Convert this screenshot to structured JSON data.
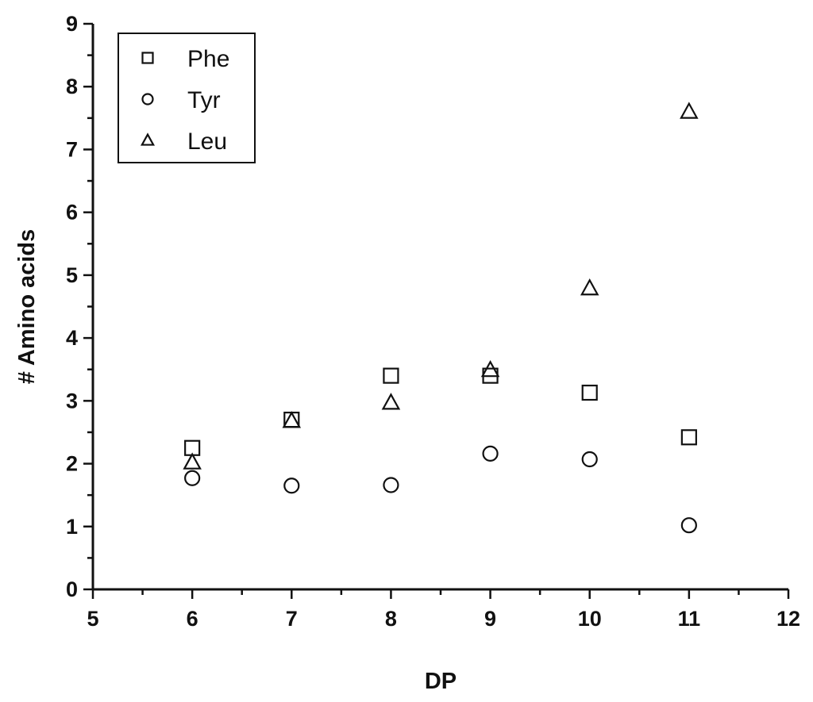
{
  "chart_data": {
    "type": "scatter",
    "xlabel": "DP",
    "ylabel": "# Amino acids",
    "xlim": [
      5,
      12
    ],
    "ylim": [
      0,
      9
    ],
    "x_ticks": [
      "5",
      "6",
      "7",
      "8",
      "9",
      "10",
      "11",
      "12"
    ],
    "y_ticks": [
      "0",
      "1",
      "2",
      "3",
      "4",
      "5",
      "6",
      "7",
      "8",
      "9"
    ],
    "legend_position": "top-left",
    "grid": false,
    "series": [
      {
        "name": "Phe",
        "marker": "square",
        "x": [
          6,
          7,
          8,
          9,
          10,
          11
        ],
        "y": [
          2.25,
          2.7,
          3.4,
          3.4,
          3.13,
          2.42
        ]
      },
      {
        "name": "Tyr",
        "marker": "circle",
        "x": [
          6,
          7,
          8,
          9,
          10,
          11
        ],
        "y": [
          1.77,
          1.65,
          1.66,
          2.16,
          2.07,
          1.02
        ]
      },
      {
        "name": "Leu",
        "marker": "triangle",
        "x": [
          6,
          7,
          8,
          9,
          10,
          11
        ],
        "y": [
          2.02,
          2.68,
          2.97,
          3.49,
          4.79,
          7.6
        ]
      }
    ]
  }
}
